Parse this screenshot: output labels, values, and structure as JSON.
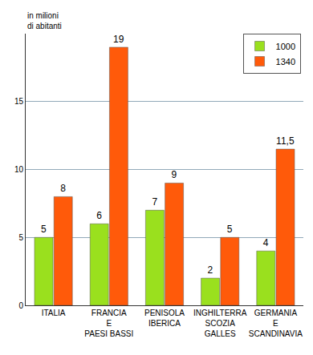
{
  "chart_data": {
    "type": "bar",
    "y_label": "in milioni\ndi abitanti",
    "categories": [
      "ITALIA",
      "FRANCIA\nE\nPAESI BASSI",
      "PENISOLA\nIBERICA",
      "INGHILTERRA\nSCOZIA\nGALLES",
      "GERMANIA\nE\nSCANDINAVIA"
    ],
    "series": [
      {
        "name": "1000",
        "color": "#9ae01e",
        "values": [
          5,
          6,
          7,
          2,
          4
        ]
      },
      {
        "name": "1340",
        "color": "#ff5a0a",
        "values": [
          8,
          19,
          9,
          5,
          11.5
        ],
        "value_labels": [
          "8",
          "19",
          "9",
          "5",
          "11,5"
        ]
      }
    ],
    "ylim": [
      0,
      20
    ],
    "yticks": [
      0,
      5,
      10,
      15
    ],
    "grid": true,
    "legend": "top-right",
    "data_labels": true
  }
}
